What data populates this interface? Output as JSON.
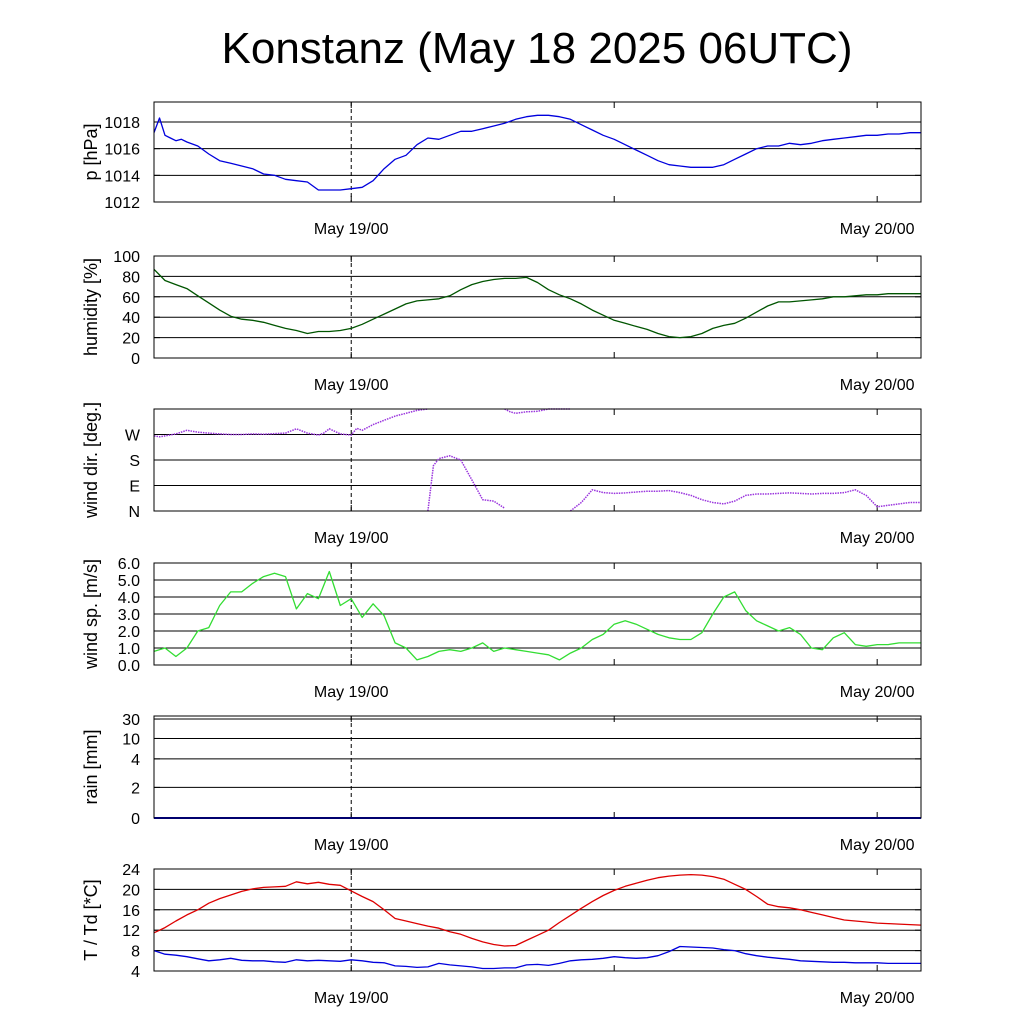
{
  "title": "Konstanz (May 18 2025 06UTC)",
  "chart_data": [
    {
      "type": "line",
      "id": "pressure",
      "ylabel": "p [hPa]",
      "ylim": [
        1012,
        1019.5
      ],
      "yticks": [
        1012,
        1014,
        1016,
        1018
      ],
      "ytick_labels": [
        "1012",
        "1014",
        "1016",
        "1018"
      ],
      "gridlines": [
        1014,
        1016,
        1018
      ],
      "xticks": [
        "May 19/00",
        "May 20/00"
      ],
      "color": "#0000dd",
      "series": [
        {
          "x": [
            0,
            0.5,
            1,
            1.5,
            2,
            2.5,
            3,
            4,
            5,
            6,
            7,
            8,
            9,
            10,
            11,
            12,
            13,
            14,
            15,
            16,
            17,
            18,
            19,
            20,
            21,
            22,
            23,
            24,
            25,
            26,
            27,
            28,
            29,
            30,
            31,
            32,
            33,
            34,
            35,
            36,
            37,
            38,
            39,
            40,
            41,
            42,
            43,
            44,
            45,
            46,
            47,
            48,
            49,
            50,
            51,
            52,
            53,
            54,
            55,
            56,
            57,
            58,
            59,
            60,
            61,
            62,
            63,
            64,
            65,
            66,
            67,
            68,
            69,
            70
          ],
          "y": [
            1017.2,
            1018.3,
            1017.0,
            1016.8,
            1016.6,
            1016.7,
            1016.5,
            1016.2,
            1015.6,
            1015.1,
            1014.9,
            1014.7,
            1014.5,
            1014.1,
            1014.0,
            1013.7,
            1013.6,
            1013.5,
            1012.9,
            1012.9,
            1012.9,
            1013.0,
            1013.1,
            1013.6,
            1014.5,
            1015.2,
            1015.5,
            1016.3,
            1016.8,
            1016.7,
            1017.0,
            1017.3,
            1017.3,
            1017.5,
            1017.7,
            1017.9,
            1018.2,
            1018.4,
            1018.5,
            1018.5,
            1018.4,
            1018.2,
            1017.8,
            1017.4,
            1017.0,
            1016.7,
            1016.3,
            1015.9,
            1015.5,
            1015.1,
            1014.8,
            1014.7,
            1014.6,
            1014.6,
            1014.6,
            1014.8,
            1015.2,
            1015.6,
            1016.0,
            1016.2,
            1016.2,
            1016.4,
            1016.3,
            1016.4,
            1016.6,
            1016.7,
            1016.8,
            1016.9,
            1017.0,
            1017.0,
            1017.1,
            1017.1,
            1017.2,
            1017.2
          ]
        }
      ]
    },
    {
      "type": "line",
      "id": "humidity",
      "ylabel": "humidity [%]",
      "ylim": [
        0,
        100
      ],
      "yticks": [
        0,
        20,
        40,
        60,
        80,
        100
      ],
      "ytick_labels": [
        "0",
        "20",
        "40",
        "60",
        "80",
        "100"
      ],
      "gridlines": [
        20,
        40,
        60,
        80
      ],
      "xticks": [
        "May 19/00",
        "May 20/00"
      ],
      "color": "#005500",
      "series": [
        {
          "x": [
            0,
            1,
            2,
            3,
            4,
            5,
            6,
            7,
            8,
            9,
            10,
            11,
            12,
            13,
            14,
            15,
            16,
            17,
            18,
            19,
            20,
            21,
            22,
            23,
            24,
            25,
            26,
            27,
            28,
            29,
            30,
            31,
            32,
            33,
            34,
            35,
            36,
            37,
            38,
            39,
            40,
            41,
            42,
            43,
            44,
            45,
            46,
            47,
            48,
            49,
            50,
            51,
            52,
            53,
            54,
            55,
            56,
            57,
            58,
            59,
            60,
            61,
            62,
            63,
            64,
            65,
            66,
            67,
            68,
            69,
            70
          ],
          "y": [
            87,
            76,
            72,
            68,
            61,
            54,
            47,
            41,
            38,
            37,
            35,
            32,
            29,
            27,
            24,
            26,
            26,
            27,
            29,
            33,
            38,
            43,
            48,
            53,
            56,
            57,
            58,
            61,
            67,
            72,
            75,
            77,
            78,
            78,
            79,
            74,
            67,
            62,
            58,
            53,
            47,
            42,
            37,
            34,
            31,
            28,
            24,
            21,
            20,
            21,
            24,
            29,
            32,
            34,
            39,
            45,
            51,
            55,
            55,
            56,
            57,
            58,
            60,
            60,
            61,
            62,
            62,
            63,
            63,
            63,
            63
          ]
        }
      ]
    },
    {
      "type": "scatter",
      "id": "wind-direction",
      "ylabel": "wind dir. [deg.]",
      "ylim": [
        0,
        360
      ],
      "yticks": [
        0,
        90,
        180,
        270
      ],
      "ytick_labels": [
        "N",
        "E",
        "S",
        "W"
      ],
      "gridlines": [
        90,
        180,
        270
      ],
      "xticks": [
        "May 19/00",
        "May 20/00"
      ],
      "color": "#9933dd",
      "series": [
        {
          "x": [
            0,
            0.5,
            1,
            2,
            3,
            4,
            5,
            6,
            7,
            8,
            9,
            10,
            11,
            12,
            13,
            14,
            15,
            15.5,
            16,
            17,
            18,
            18.5,
            19,
            20,
            21,
            22,
            23,
            24,
            25
          ],
          "y": [
            265,
            262,
            265,
            272,
            285,
            278,
            275,
            272,
            270,
            270,
            272,
            271,
            273,
            275,
            290,
            275,
            268,
            275,
            290,
            272,
            268,
            292,
            285,
            305,
            320,
            335,
            345,
            355,
            360
          ]
        },
        {
          "x": [
            25,
            25.5,
            26,
            27,
            28,
            29,
            30,
            31,
            32
          ],
          "y": [
            0,
            160,
            185,
            195,
            180,
            110,
            40,
            35,
            10
          ]
        },
        {
          "x": [
            32,
            32.5,
            33,
            34,
            35,
            36,
            37,
            38
          ],
          "y": [
            360,
            350,
            345,
            350,
            352,
            360,
            360,
            360
          ]
        },
        {
          "x": [
            38,
            39,
            40,
            41,
            42,
            43,
            44,
            45,
            46,
            47,
            48,
            49,
            50,
            51,
            52,
            53,
            54,
            55,
            56,
            57,
            58,
            59,
            60,
            61,
            62,
            63,
            64,
            65,
            66,
            67,
            68,
            69,
            70
          ],
          "y": [
            0,
            30,
            75,
            65,
            62,
            64,
            67,
            70,
            70,
            72,
            65,
            55,
            40,
            30,
            25,
            35,
            55,
            60,
            60,
            62,
            64,
            62,
            60,
            62,
            62,
            65,
            75,
            55,
            15,
            20,
            25,
            30,
            30
          ]
        }
      ]
    },
    {
      "type": "line",
      "id": "wind-speed",
      "ylabel": "wind sp. [m/s]",
      "ylim": [
        0,
        6
      ],
      "yticks": [
        0,
        1,
        2,
        3,
        4,
        5,
        6
      ],
      "ytick_labels": [
        "0.0",
        "1.0",
        "2.0",
        "3.0",
        "4.0",
        "5.0",
        "6.0"
      ],
      "gridlines": [
        1,
        2,
        3,
        4,
        5
      ],
      "xticks": [
        "May 19/00",
        "May 20/00"
      ],
      "color": "#33dd33",
      "series": [
        {
          "x": [
            0,
            1,
            2,
            3,
            4,
            5,
            6,
            7,
            8,
            9,
            10,
            11,
            12,
            13,
            14,
            15,
            16,
            17,
            18,
            19,
            20,
            21,
            22,
            23,
            24,
            25,
            26,
            27,
            28,
            29,
            30,
            31,
            32,
            33,
            34,
            35,
            36,
            37,
            38,
            39,
            40,
            41,
            42,
            43,
            44,
            45,
            46,
            47,
            48,
            49,
            50,
            51,
            52,
            53,
            54,
            55,
            56,
            57,
            58,
            59,
            60,
            61,
            62,
            63,
            64,
            65,
            66,
            67,
            68,
            69,
            70
          ],
          "y": [
            0.8,
            1.0,
            0.5,
            1.0,
            2.0,
            2.2,
            3.5,
            4.3,
            4.3,
            4.8,
            5.2,
            5.4,
            5.2,
            3.3,
            4.2,
            3.9,
            5.5,
            3.5,
            3.9,
            2.8,
            3.6,
            2.9,
            1.3,
            1.0,
            0.3,
            0.5,
            0.8,
            0.9,
            0.8,
            1.0,
            1.3,
            0.8,
            1.0,
            0.9,
            0.8,
            0.7,
            0.6,
            0.3,
            0.7,
            1.0,
            1.5,
            1.8,
            2.4,
            2.6,
            2.4,
            2.1,
            1.8,
            1.6,
            1.5,
            1.5,
            1.9,
            3.0,
            4.0,
            4.3,
            3.2,
            2.6,
            2.3,
            2.0,
            2.2,
            1.8,
            1.0,
            0.9,
            1.6,
            1.9,
            1.2,
            1.1,
            1.2,
            1.2,
            1.3,
            1.3,
            1.3
          ]
        }
      ]
    },
    {
      "type": "bar",
      "id": "rain",
      "ylabel": "rain [mm]",
      "yticks": [
        0,
        2,
        4,
        10,
        30
      ],
      "ytick_labels": [
        "0",
        "2",
        "4",
        "10",
        "30"
      ],
      "gridlines": [
        2,
        4,
        10,
        30
      ],
      "xticks": [
        "May 19/00",
        "May 20/00"
      ],
      "color": "#0000dd",
      "series": [
        {
          "x": [
            0,
            70
          ],
          "y": [
            0,
            0
          ]
        }
      ]
    },
    {
      "type": "line",
      "id": "temperature-dewpoint",
      "ylabel": "T / Td [*C]",
      "ylim": [
        4,
        24
      ],
      "yticks": [
        4,
        8,
        12,
        16,
        20,
        24
      ],
      "ytick_labels": [
        "4",
        "8",
        "12",
        "16",
        "20",
        "24"
      ],
      "gridlines": [
        8,
        12,
        16,
        20
      ],
      "xticks": [
        "May 19/00",
        "May 20/00"
      ],
      "series": [
        {
          "color": "#dd0000",
          "x": [
            0,
            1,
            2,
            3,
            4,
            5,
            6,
            7,
            8,
            9,
            10,
            11,
            12,
            13,
            14,
            15,
            16,
            17,
            18,
            19,
            20,
            21,
            22,
            23,
            24,
            25,
            26,
            27,
            28,
            29,
            30,
            31,
            32,
            33,
            34,
            35,
            36,
            37,
            38,
            39,
            40,
            41,
            42,
            43,
            44,
            45,
            46,
            47,
            48,
            49,
            50,
            51,
            52,
            53,
            54,
            55,
            56,
            57,
            58,
            59,
            60,
            61,
            62,
            63,
            64,
            65,
            66,
            67,
            68,
            69,
            70
          ],
          "y": [
            11.5,
            12.5,
            13.8,
            15.0,
            16.0,
            17.3,
            18.2,
            18.9,
            19.6,
            20.1,
            20.4,
            20.5,
            20.6,
            21.5,
            21.1,
            21.4,
            21.0,
            20.8,
            19.7,
            18.6,
            17.6,
            16.0,
            14.3,
            13.8,
            13.3,
            12.8,
            12.4,
            11.7,
            11.2,
            10.4,
            9.7,
            9.2,
            8.9,
            9.0,
            10.0,
            11.0,
            12.0,
            13.5,
            14.9,
            16.3,
            17.6,
            18.8,
            19.8,
            20.6,
            21.2,
            21.8,
            22.3,
            22.6,
            22.8,
            22.9,
            22.8,
            22.5,
            22.0,
            21.0,
            20.0,
            18.6,
            17.1,
            16.6,
            16.4,
            16.0,
            15.5,
            15.0,
            14.5,
            14.0,
            13.8,
            13.6,
            13.4,
            13.3,
            13.2,
            13.1,
            13.0
          ]
        },
        {
          "color": "#0000dd",
          "x": [
            0,
            1,
            2,
            3,
            4,
            5,
            6,
            7,
            8,
            9,
            10,
            11,
            12,
            13,
            14,
            15,
            16,
            17,
            18,
            19,
            20,
            21,
            22,
            23,
            24,
            25,
            26,
            27,
            28,
            29,
            30,
            31,
            32,
            33,
            34,
            35,
            36,
            37,
            38,
            39,
            40,
            41,
            42,
            43,
            44,
            45,
            46,
            47,
            48,
            49,
            50,
            51,
            52,
            53,
            54,
            55,
            56,
            57,
            58,
            59,
            60,
            61,
            62,
            63,
            64,
            65,
            66,
            67,
            68,
            69,
            70
          ],
          "y": [
            8.0,
            7.3,
            7.1,
            6.8,
            6.4,
            6.0,
            6.2,
            6.5,
            6.1,
            6.0,
            6.0,
            5.8,
            5.7,
            6.2,
            6.0,
            6.1,
            6.0,
            5.9,
            6.2,
            6.0,
            5.7,
            5.6,
            5.0,
            4.9,
            4.7,
            4.8,
            5.5,
            5.2,
            5.0,
            4.8,
            4.5,
            4.5,
            4.6,
            4.6,
            5.2,
            5.3,
            5.1,
            5.5,
            6.0,
            6.2,
            6.3,
            6.5,
            6.8,
            6.6,
            6.5,
            6.6,
            7.0,
            7.8,
            8.8,
            8.7,
            8.6,
            8.5,
            8.2,
            8.0,
            7.4,
            7.0,
            6.7,
            6.5,
            6.3,
            6.0,
            5.9,
            5.8,
            5.7,
            5.7,
            5.6,
            5.6,
            5.6,
            5.5,
            5.5,
            5.5,
            5.5
          ]
        }
      ]
    }
  ]
}
